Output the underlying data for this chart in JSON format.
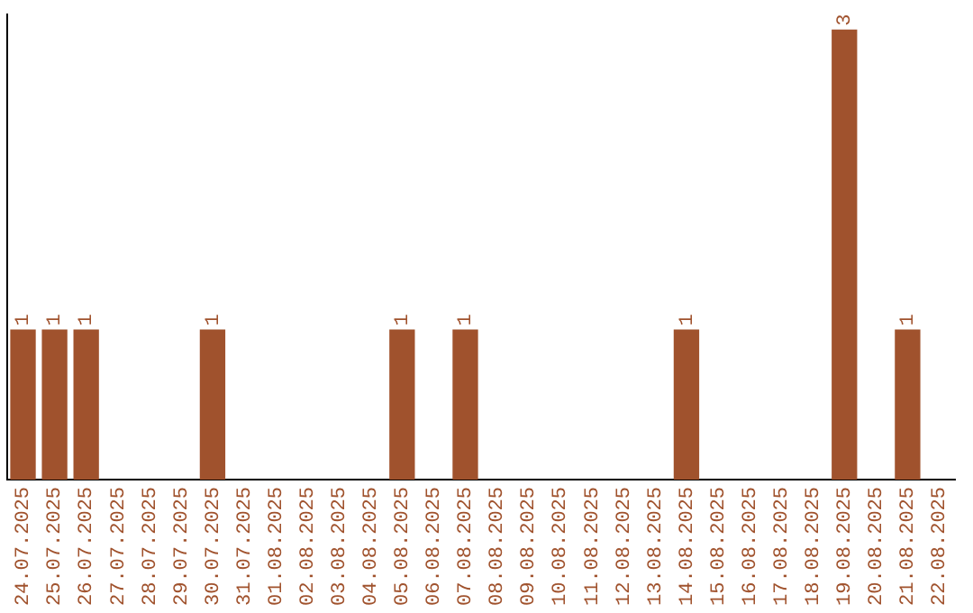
{
  "chart_data": {
    "type": "bar",
    "categories": [
      "24.07.2025",
      "25.07.2025",
      "26.07.2025",
      "27.07.2025",
      "28.07.2025",
      "29.07.2025",
      "30.07.2025",
      "31.07.2025",
      "01.08.2025",
      "02.08.2025",
      "03.08.2025",
      "04.08.2025",
      "05.08.2025",
      "06.08.2025",
      "07.08.2025",
      "08.08.2025",
      "09.08.2025",
      "10.08.2025",
      "11.08.2025",
      "12.08.2025",
      "13.08.2025",
      "14.08.2025",
      "15.08.2025",
      "16.08.2025",
      "17.08.2025",
      "18.08.2025",
      "19.08.2025",
      "20.08.2025",
      "21.08.2025",
      "22.08.2025"
    ],
    "values": [
      1,
      1,
      1,
      0,
      0,
      0,
      1,
      0,
      0,
      0,
      0,
      0,
      1,
      0,
      1,
      0,
      0,
      0,
      0,
      0,
      0,
      1,
      0,
      0,
      0,
      0,
      3,
      0,
      1,
      0
    ],
    "value_labels": [
      "1",
      "1",
      "1",
      null,
      null,
      null,
      "1",
      null,
      null,
      null,
      null,
      null,
      "1",
      null,
      "1",
      null,
      null,
      null,
      null,
      null,
      null,
      "1",
      null,
      null,
      null,
      null,
      "3",
      null,
      "1",
      null
    ],
    "color": "#a0522d",
    "ylim": [
      0,
      3.1
    ],
    "tick_labels": "x",
    "grid": false,
    "legend": false
  }
}
